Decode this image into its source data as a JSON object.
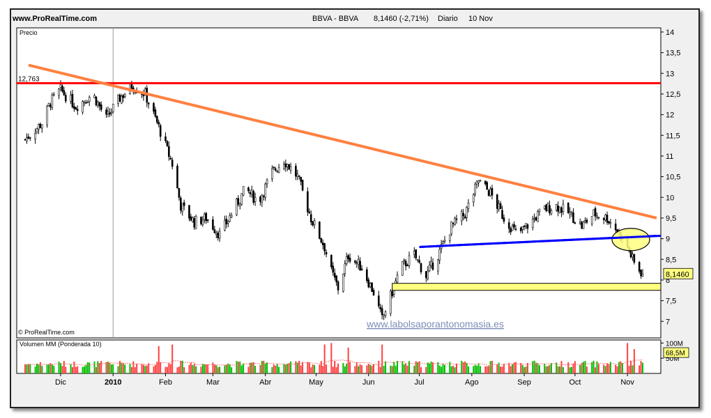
{
  "header": {
    "site": "www.ProRealTime.com",
    "symbol": "BBVA - BBVA",
    "quote": "8,1460 (-2,71%)",
    "period": "Diario",
    "date": "10 Nov"
  },
  "price_panel": {
    "label": "Precio",
    "copyright": "© ProRealTime.com",
    "watermark": "www.labolsaporantonomasia.es",
    "resistance_label": "12,763",
    "last_price_label": "8,1460"
  },
  "volume_panel": {
    "label": "Volumen MM (Ponderada 10)",
    "last_volume_label": "68,5M"
  },
  "colors": {
    "up_candle": "#000000",
    "resistance_line": "#ff0000",
    "trend_line": "#ff8040",
    "support_line": "#0000ff",
    "highlight_fill": "#ffff80",
    "volume_up": "#00c000",
    "volume_down": "#ff4040"
  },
  "chart_data": [
    {
      "type": "candlestick",
      "title": "BBVA - BBVA 8,1460 (-2,71%) Diario 10 Nov",
      "ylabel": "Precio",
      "ylim": [
        6.6,
        14.1
      ],
      "yticks": [
        "14",
        "13,5",
        "13",
        "12,5",
        "12",
        "11,5",
        "11",
        "10,5",
        "10",
        "9,5",
        "9",
        "8,5",
        "8",
        "7,5",
        "7"
      ],
      "ytick_values": [
        14,
        13.5,
        13,
        12.5,
        12,
        11.5,
        11,
        10.5,
        10,
        9.5,
        9,
        8.5,
        8,
        7.5,
        7
      ],
      "xticks": [
        "Dic",
        "2010",
        "Feb",
        "Mar",
        "Abr",
        "May",
        "Jun",
        "Jul",
        "Ago",
        "Sep",
        "Oct",
        "Nov"
      ],
      "xtick_dates": [
        "2009-12-01",
        "2010-01-01",
        "2010-02-01",
        "2010-03-01",
        "2010-04-01",
        "2010-05-01",
        "2010-06-01",
        "2010-07-01",
        "2010-08-01",
        "2010-09-01",
        "2010-10-01",
        "2010-11-01"
      ],
      "date_range": [
        "2009-11-10",
        "2010-11-10"
      ],
      "close_path": [
        [
          "2009-11-10",
          11.4
        ],
        [
          "2009-11-20",
          11.8
        ],
        [
          "2009-11-25",
          12.3
        ],
        [
          "2009-12-01",
          12.6
        ],
        [
          "2009-12-10",
          12.2
        ],
        [
          "2009-12-20",
          12.5
        ],
        [
          "2009-12-28",
          11.9
        ],
        [
          "2010-01-05",
          12.4
        ],
        [
          "2010-01-12",
          12.7
        ],
        [
          "2010-01-20",
          12.5
        ],
        [
          "2010-01-28",
          11.7
        ],
        [
          "2010-02-05",
          10.8
        ],
        [
          "2010-02-10",
          9.8
        ],
        [
          "2010-02-18",
          9.4
        ],
        [
          "2010-02-25",
          9.5
        ],
        [
          "2010-03-05",
          9.1
        ],
        [
          "2010-03-12",
          9.6
        ],
        [
          "2010-03-20",
          10.2
        ],
        [
          "2010-03-28",
          9.9
        ],
        [
          "2010-04-05",
          10.6
        ],
        [
          "2010-04-12",
          10.9
        ],
        [
          "2010-04-20",
          10.5
        ],
        [
          "2010-04-28",
          9.5
        ],
        [
          "2010-05-06",
          8.8
        ],
        [
          "2010-05-10",
          8.2
        ],
        [
          "2010-05-14",
          7.8
        ],
        [
          "2010-05-20",
          8.6
        ],
        [
          "2010-05-28",
          8.3
        ],
        [
          "2010-06-04",
          7.7
        ],
        [
          "2010-06-09",
          7.05
        ],
        [
          "2010-06-14",
          7.6
        ],
        [
          "2010-06-20",
          8.3
        ],
        [
          "2010-06-28",
          8.6
        ],
        [
          "2010-07-05",
          8.1
        ],
        [
          "2010-07-12",
          8.6
        ],
        [
          "2010-07-20",
          9.3
        ],
        [
          "2010-07-28",
          9.6
        ],
        [
          "2010-08-05",
          10.4
        ],
        [
          "2010-08-12",
          10.1
        ],
        [
          "2010-08-20",
          9.5
        ],
        [
          "2010-08-28",
          9.1
        ],
        [
          "2010-09-05",
          9.4
        ],
        [
          "2010-09-12",
          9.7
        ],
        [
          "2010-09-20",
          9.8
        ],
        [
          "2010-09-28",
          9.6
        ],
        [
          "2010-10-05",
          9.3
        ],
        [
          "2010-10-12",
          9.6
        ],
        [
          "2010-10-20",
          9.5
        ],
        [
          "2010-10-26",
          9.2
        ],
        [
          "2010-11-01",
          8.8
        ],
        [
          "2010-11-05",
          8.4
        ],
        [
          "2010-11-10",
          8.146
        ]
      ],
      "annotations": [
        {
          "type": "hline",
          "name": "resistance",
          "value": 12.763
        },
        {
          "type": "trendline",
          "name": "descending",
          "from": [
            "2009-11-12",
            13.2
          ],
          "to": [
            "2010-11-10",
            9.5
          ]
        },
        {
          "type": "trendline",
          "name": "support",
          "from": [
            "2010-07-01",
            8.8
          ],
          "to": [
            "2010-11-10",
            9.07
          ]
        },
        {
          "type": "zone",
          "name": "support-zone",
          "from_date": "2010-06-15",
          "low": 7.75,
          "high": 7.92
        },
        {
          "type": "ellipse",
          "name": "breakdown",
          "date": "2010-11-03",
          "value": 8.98
        }
      ],
      "last_price": 8.146,
      "change_pct": -2.71
    },
    {
      "type": "bar",
      "title": "Volumen MM (Ponderada 10)",
      "ytick_labels": [
        "100M",
        "50M"
      ],
      "ytick_values": [
        100,
        50
      ],
      "units": "M",
      "last_volume": 68.5,
      "spikes": [
        [
          "2010-01-28",
          90
        ],
        [
          "2010-02-05",
          95
        ],
        [
          "2010-05-06",
          95
        ],
        [
          "2010-05-10",
          100
        ],
        [
          "2010-05-20",
          85
        ],
        [
          "2010-06-09",
          95
        ],
        [
          "2010-11-01",
          100
        ],
        [
          "2010-11-05",
          80
        ]
      ]
    }
  ]
}
